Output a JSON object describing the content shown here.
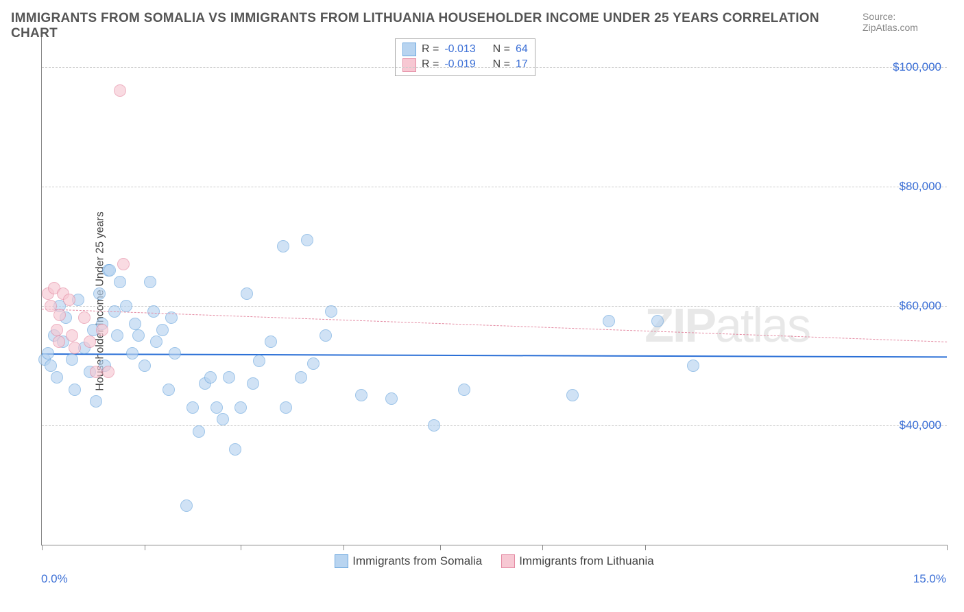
{
  "title": "IMMIGRANTS FROM SOMALIA VS IMMIGRANTS FROM LITHUANIA HOUSEHOLDER INCOME UNDER 25 YEARS CORRELATION CHART",
  "source_label": "Source: ",
  "source_name": "ZipAtlas.com",
  "watermark_bold": "ZIP",
  "watermark_thin": "atlas",
  "ylabel": "Householder Income Under 25 years",
  "chart": {
    "type": "scatter",
    "xlim": [
      0.0,
      15.0
    ],
    "ylim": [
      20000,
      105000
    ],
    "x_min_label": "0.0%",
    "x_max_label": "15.0%",
    "x_ticks": [
      0.0,
      1.7,
      3.3,
      5.0,
      6.6,
      8.3,
      10.0,
      15.0
    ],
    "y_gridlines": [
      40000,
      60000,
      80000,
      100000
    ],
    "y_tick_labels": [
      "$40,000",
      "$60,000",
      "$80,000",
      "$100,000"
    ],
    "background_color": "#ffffff",
    "grid_color": "#cccccc",
    "axis_color": "#888888",
    "tick_label_color": "#3b6fd6",
    "tick_label_fontsize": 17,
    "point_radius": 9,
    "series": [
      {
        "id": "somalia",
        "label": "Immigrants from Somalia",
        "fill": "#b8d4f0",
        "stroke": "#6aa6de",
        "fill_opacity": 0.65,
        "R": "-0.013",
        "N": "64",
        "trend": {
          "y_at_xmin": 52000,
          "y_at_xmax": 51500,
          "stroke": "#2a6fd6",
          "dash": "solid",
          "width": 2
        },
        "points": [
          [
            0.05,
            51000
          ],
          [
            0.1,
            52000
          ],
          [
            0.15,
            50000
          ],
          [
            0.2,
            55000
          ],
          [
            0.25,
            48000
          ],
          [
            0.3,
            60000
          ],
          [
            0.35,
            54000
          ],
          [
            0.4,
            58000
          ],
          [
            0.5,
            51000
          ],
          [
            0.55,
            46000
          ],
          [
            0.6,
            61000
          ],
          [
            0.7,
            53000
          ],
          [
            0.8,
            49000
          ],
          [
            0.85,
            56000
          ],
          [
            0.9,
            44000
          ],
          [
            0.95,
            62000
          ],
          [
            1.0,
            57000
          ],
          [
            1.05,
            50000
          ],
          [
            1.1,
            66000
          ],
          [
            1.13,
            66000
          ],
          [
            1.2,
            59000
          ],
          [
            1.25,
            55000
          ],
          [
            1.3,
            64000
          ],
          [
            1.4,
            60000
          ],
          [
            1.5,
            52000
          ],
          [
            1.55,
            57000
          ],
          [
            1.6,
            55000
          ],
          [
            1.7,
            50000
          ],
          [
            1.8,
            64000
          ],
          [
            1.85,
            59000
          ],
          [
            1.9,
            54000
          ],
          [
            2.0,
            56000
          ],
          [
            2.1,
            46000
          ],
          [
            2.15,
            58000
          ],
          [
            2.2,
            52000
          ],
          [
            2.4,
            26500
          ],
          [
            2.5,
            43000
          ],
          [
            2.6,
            39000
          ],
          [
            2.7,
            47000
          ],
          [
            2.8,
            48000
          ],
          [
            2.9,
            43000
          ],
          [
            3.0,
            41000
          ],
          [
            3.1,
            48000
          ],
          [
            3.2,
            36000
          ],
          [
            3.3,
            43000
          ],
          [
            3.4,
            62000
          ],
          [
            3.5,
            47000
          ],
          [
            3.6,
            50800
          ],
          [
            3.8,
            54000
          ],
          [
            4.0,
            70000
          ],
          [
            4.05,
            43000
          ],
          [
            4.3,
            48000
          ],
          [
            4.4,
            71000
          ],
          [
            4.5,
            50368
          ],
          [
            4.7,
            55000
          ],
          [
            4.8,
            59000
          ],
          [
            5.3,
            45000
          ],
          [
            5.8,
            44500
          ],
          [
            6.5,
            40000
          ],
          [
            7.0,
            46000
          ],
          [
            8.8,
            45000
          ],
          [
            9.4,
            57500
          ],
          [
            10.2,
            57500
          ],
          [
            10.8,
            50000
          ]
        ]
      },
      {
        "id": "lithuania",
        "label": "Immigrants from Lithuania",
        "fill": "#f7c8d3",
        "stroke": "#e48aa2",
        "fill_opacity": 0.65,
        "R": "-0.019",
        "N": "17",
        "trend": {
          "y_at_xmin": 59500,
          "y_at_xmax": 54000,
          "stroke": "#e48aa2",
          "dash": "5,5",
          "width": 1.5
        },
        "points": [
          [
            0.1,
            62000
          ],
          [
            0.15,
            60000
          ],
          [
            0.2,
            63000
          ],
          [
            0.25,
            56000
          ],
          [
            0.28,
            54000
          ],
          [
            0.3,
            58500
          ],
          [
            0.35,
            62000
          ],
          [
            0.45,
            61000
          ],
          [
            0.5,
            55000
          ],
          [
            0.55,
            53000
          ],
          [
            0.7,
            58000
          ],
          [
            0.8,
            54000
          ],
          [
            0.9,
            49000
          ],
          [
            1.0,
            56000
          ],
          [
            1.1,
            49000
          ],
          [
            1.3,
            96000
          ],
          [
            1.35,
            67000
          ]
        ]
      }
    ]
  },
  "stats_box": {
    "R_label": "R = ",
    "N_label": "N = "
  }
}
